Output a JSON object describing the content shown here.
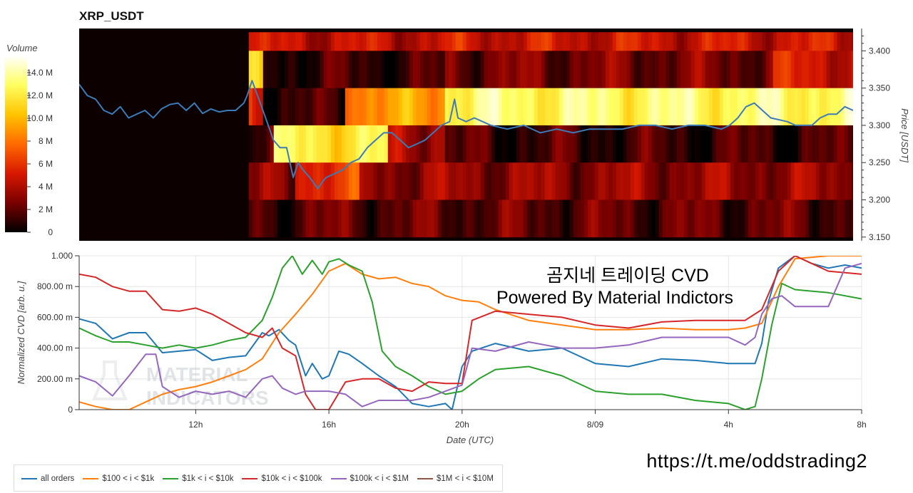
{
  "chart_data": [
    {
      "type": "heatmap",
      "title": "XRP_USDT",
      "ylabel": "Price [USDT]",
      "ylim": [
        3.145,
        3.43
      ],
      "y_ticks": [
        "3.150",
        "3.200",
        "3.250",
        "3.300",
        "3.350",
        "3.400"
      ],
      "colorbar": {
        "label": "Volume",
        "ticks": [
          "0",
          "2 M",
          "4 M",
          "6 M",
          "8 M",
          "10.0 M",
          "12.0 M",
          "14.0 M"
        ],
        "range": [
          0,
          15.5
        ],
        "colors": [
          "#000000",
          "#7a0000",
          "#d81800",
          "#ff6a00",
          "#ffc400",
          "#ffff60",
          "#ffffff"
        ]
      },
      "price_bands": [
        3.425,
        3.4,
        3.35,
        3.3,
        3.25,
        3.2,
        3.15
      ],
      "price_series": {
        "name": "price",
        "color": "#3b7bb8",
        "x": [
          8.5,
          8.75,
          9.0,
          9.25,
          9.5,
          9.75,
          10.0,
          10.25,
          10.5,
          10.75,
          11.0,
          11.25,
          11.5,
          11.75,
          12.0,
          12.25,
          12.5,
          12.75,
          13.0,
          13.25,
          13.5,
          13.6,
          13.75,
          14.0,
          14.2,
          14.4,
          14.6,
          14.8,
          15.0,
          15.15,
          15.3,
          15.5,
          15.75,
          15.9,
          16.0,
          16.25,
          16.5,
          16.75,
          17.0,
          17.25,
          17.5,
          17.75,
          18.0,
          18.25,
          18.5,
          18.75,
          19.0,
          19.25,
          19.5,
          19.75,
          19.9,
          20.0,
          20.25,
          20.5,
          20.75,
          21.0,
          21.5,
          22.0,
          22.5,
          23.0,
          23.5,
          24.0,
          24.5,
          25.0,
          25.5,
          26.0,
          26.5,
          27.0,
          27.5,
          28.0,
          28.25,
          28.5,
          28.75,
          29.0,
          29.25,
          29.5,
          30.0,
          30.25,
          30.5,
          30.75,
          31.0,
          31.25,
          31.5,
          31.75,
          32.0
        ],
        "y": [
          3.355,
          3.34,
          3.335,
          3.32,
          3.315,
          3.325,
          3.31,
          3.315,
          3.32,
          3.31,
          3.322,
          3.328,
          3.33,
          3.32,
          3.33,
          3.316,
          3.322,
          3.318,
          3.32,
          3.32,
          3.33,
          3.34,
          3.36,
          3.33,
          3.305,
          3.28,
          3.27,
          3.27,
          3.23,
          3.25,
          3.24,
          3.23,
          3.215,
          3.225,
          3.23,
          3.235,
          3.24,
          3.25,
          3.255,
          3.27,
          3.28,
          3.29,
          3.29,
          3.28,
          3.27,
          3.275,
          3.28,
          3.29,
          3.3,
          3.305,
          3.335,
          3.31,
          3.305,
          3.31,
          3.305,
          3.3,
          3.295,
          3.3,
          3.29,
          3.295,
          3.29,
          3.295,
          3.295,
          3.295,
          3.3,
          3.3,
          3.295,
          3.3,
          3.3,
          3.295,
          3.3,
          3.31,
          3.325,
          3.33,
          3.32,
          3.31,
          3.305,
          3.3,
          3.3,
          3.3,
          3.31,
          3.315,
          3.315,
          3.325,
          3.32
        ]
      }
    },
    {
      "type": "line",
      "xlabel": "Date (UTC)",
      "ylabel": "Normalized CVD [arb. u.]",
      "xlim": [
        8.5,
        32.0
      ],
      "ylim": [
        0,
        1.0
      ],
      "x_ticks": [
        {
          "x": 12,
          "label": "12h"
        },
        {
          "x": 16,
          "label": "16h"
        },
        {
          "x": 20,
          "label": "20h"
        },
        {
          "x": 24,
          "label": "8/09"
        },
        {
          "x": 28,
          "label": "4h"
        },
        {
          "x": 32,
          "label": "8h"
        }
      ],
      "y_ticks": [
        {
          "y": 0,
          "label": "0"
        },
        {
          "y": 0.2,
          "label": "200.00 m"
        },
        {
          "y": 0.4,
          "label": "400.00 m"
        },
        {
          "y": 0.6,
          "label": "600.00 m"
        },
        {
          "y": 0.8,
          "label": "800.00 m"
        },
        {
          "y": 1.0,
          "label": "1.000"
        }
      ],
      "grid": true,
      "legend_position": "bottom",
      "series": [
        {
          "name": "all orders",
          "color": "#1f77b4",
          "x": [
            8.5,
            9.0,
            9.5,
            10.0,
            10.5,
            11.0,
            11.5,
            12.0,
            12.5,
            13.0,
            13.5,
            14.0,
            14.2,
            14.5,
            14.8,
            15.0,
            15.3,
            15.5,
            15.8,
            16.0,
            16.3,
            16.6,
            17.0,
            17.5,
            18.0,
            18.5,
            19.0,
            19.5,
            19.7,
            20.0,
            20.3,
            21.0,
            22.0,
            23.0,
            24.0,
            25.0,
            26.0,
            27.0,
            28.0,
            28.5,
            28.8,
            29.0,
            29.2,
            29.5,
            30.0,
            30.5,
            31.0,
            31.5,
            32.0
          ],
          "y": [
            0.59,
            0.56,
            0.46,
            0.5,
            0.5,
            0.37,
            0.38,
            0.39,
            0.32,
            0.34,
            0.35,
            0.5,
            0.48,
            0.52,
            0.45,
            0.42,
            0.22,
            0.3,
            0.2,
            0.22,
            0.38,
            0.36,
            0.3,
            0.22,
            0.15,
            0.04,
            0.02,
            0.04,
            0.0,
            0.28,
            0.38,
            0.43,
            0.38,
            0.4,
            0.3,
            0.28,
            0.33,
            0.32,
            0.3,
            0.3,
            0.3,
            0.43,
            0.7,
            0.92,
            1.0,
            0.95,
            0.92,
            0.94,
            0.92
          ]
        },
        {
          "name": "$100 < i < $1k",
          "color": "#ff7f0e",
          "x": [
            8.5,
            9.0,
            9.5,
            10.0,
            10.5,
            11.0,
            11.5,
            12.0,
            12.5,
            13.0,
            13.5,
            14.0,
            14.5,
            15.0,
            15.5,
            16.0,
            16.5,
            17.0,
            17.5,
            18.0,
            18.5,
            19.0,
            19.5,
            20.0,
            20.5,
            21.0,
            22.0,
            23.0,
            24.0,
            25.0,
            26.0,
            27.0,
            28.0,
            28.5,
            29.0,
            29.5,
            30.0,
            31.0,
            32.0
          ],
          "y": [
            0.05,
            0.02,
            0.0,
            0.0,
            0.05,
            0.1,
            0.13,
            0.15,
            0.18,
            0.22,
            0.26,
            0.33,
            0.5,
            0.62,
            0.75,
            0.9,
            0.95,
            0.88,
            0.85,
            0.86,
            0.82,
            0.8,
            0.74,
            0.71,
            0.7,
            0.65,
            0.58,
            0.55,
            0.52,
            0.52,
            0.53,
            0.52,
            0.52,
            0.53,
            0.56,
            0.8,
            0.98,
            1.0,
            1.0
          ]
        },
        {
          "name": "$1k < i < $10k",
          "color": "#2ca02c",
          "x": [
            8.5,
            9.0,
            9.5,
            10.0,
            10.5,
            11.0,
            11.5,
            12.0,
            12.5,
            13.0,
            13.5,
            14.0,
            14.3,
            14.6,
            14.9,
            15.2,
            15.5,
            15.8,
            16.0,
            16.3,
            16.6,
            17.0,
            17.3,
            17.6,
            18.0,
            18.5,
            19.0,
            19.5,
            20.0,
            20.5,
            21.0,
            22.0,
            23.0,
            24.0,
            25.0,
            26.0,
            27.0,
            28.0,
            28.5,
            28.8,
            29.0,
            29.3,
            29.6,
            30.0,
            31.0,
            32.0
          ],
          "y": [
            0.53,
            0.48,
            0.44,
            0.44,
            0.42,
            0.4,
            0.42,
            0.4,
            0.42,
            0.45,
            0.47,
            0.58,
            0.73,
            0.92,
            1.0,
            0.88,
            0.97,
            0.88,
            0.96,
            0.98,
            0.94,
            0.9,
            0.7,
            0.38,
            0.28,
            0.22,
            0.15,
            0.1,
            0.12,
            0.2,
            0.26,
            0.28,
            0.22,
            0.12,
            0.1,
            0.1,
            0.06,
            0.04,
            0.0,
            0.02,
            0.2,
            0.55,
            0.82,
            0.78,
            0.76,
            0.72
          ]
        },
        {
          "name": "$10k < i < $100k",
          "color": "#d62728",
          "x": [
            8.5,
            9.0,
            9.5,
            10.0,
            10.5,
            11.0,
            11.5,
            12.0,
            12.5,
            13.0,
            13.5,
            14.0,
            14.3,
            14.6,
            15.0,
            15.3,
            15.6,
            16.0,
            16.5,
            17.0,
            17.5,
            18.0,
            18.5,
            19.0,
            19.5,
            20.0,
            20.3,
            21.0,
            22.0,
            23.0,
            24.0,
            25.0,
            26.0,
            27.0,
            28.0,
            28.5,
            29.0,
            29.5,
            30.0,
            31.0,
            32.0
          ],
          "y": [
            0.88,
            0.86,
            0.8,
            0.77,
            0.77,
            0.65,
            0.64,
            0.66,
            0.62,
            0.56,
            0.5,
            0.47,
            0.53,
            0.4,
            0.35,
            0.1,
            0.0,
            0.0,
            0.18,
            0.2,
            0.2,
            0.14,
            0.12,
            0.18,
            0.17,
            0.17,
            0.58,
            0.64,
            0.62,
            0.6,
            0.55,
            0.53,
            0.57,
            0.58,
            0.58,
            0.58,
            0.65,
            0.9,
            1.0,
            0.9,
            0.88
          ]
        },
        {
          "name": "$100k < i < $1M",
          "color": "#9467bd",
          "x": [
            8.5,
            9.0,
            9.5,
            10.0,
            10.5,
            10.8,
            11.0,
            11.5,
            12.0,
            12.5,
            13.0,
            13.5,
            14.0,
            14.3,
            14.6,
            15.0,
            15.3,
            15.6,
            16.0,
            16.5,
            17.0,
            17.5,
            18.0,
            18.5,
            19.0,
            19.5,
            20.0,
            20.3,
            21.0,
            22.0,
            23.0,
            24.0,
            25.0,
            26.0,
            27.0,
            28.0,
            28.5,
            28.8,
            29.0,
            29.3,
            29.6,
            30.0,
            30.5,
            31.0,
            31.5,
            32.0
          ],
          "y": [
            0.22,
            0.18,
            0.09,
            0.22,
            0.36,
            0.36,
            0.15,
            0.08,
            0.12,
            0.1,
            0.12,
            0.08,
            0.2,
            0.22,
            0.14,
            0.1,
            0.12,
            0.12,
            0.12,
            0.1,
            0.02,
            0.06,
            0.06,
            0.06,
            0.08,
            0.12,
            0.16,
            0.4,
            0.38,
            0.44,
            0.4,
            0.4,
            0.42,
            0.47,
            0.47,
            0.47,
            0.42,
            0.47,
            0.62,
            0.72,
            0.74,
            0.67,
            0.67,
            0.67,
            0.92,
            0.95
          ]
        },
        {
          "name": "$1M < i < $10M",
          "color": "#8c564b",
          "x": [],
          "y": []
        }
      ]
    }
  ],
  "annotations": {
    "korean_title": "곰지네 트레이딩 CVD",
    "powered_by": "Powered By Material Indictors",
    "url": "https://t.me/oddstrading2",
    "watermark": "MATERIAL INDICATORS"
  }
}
